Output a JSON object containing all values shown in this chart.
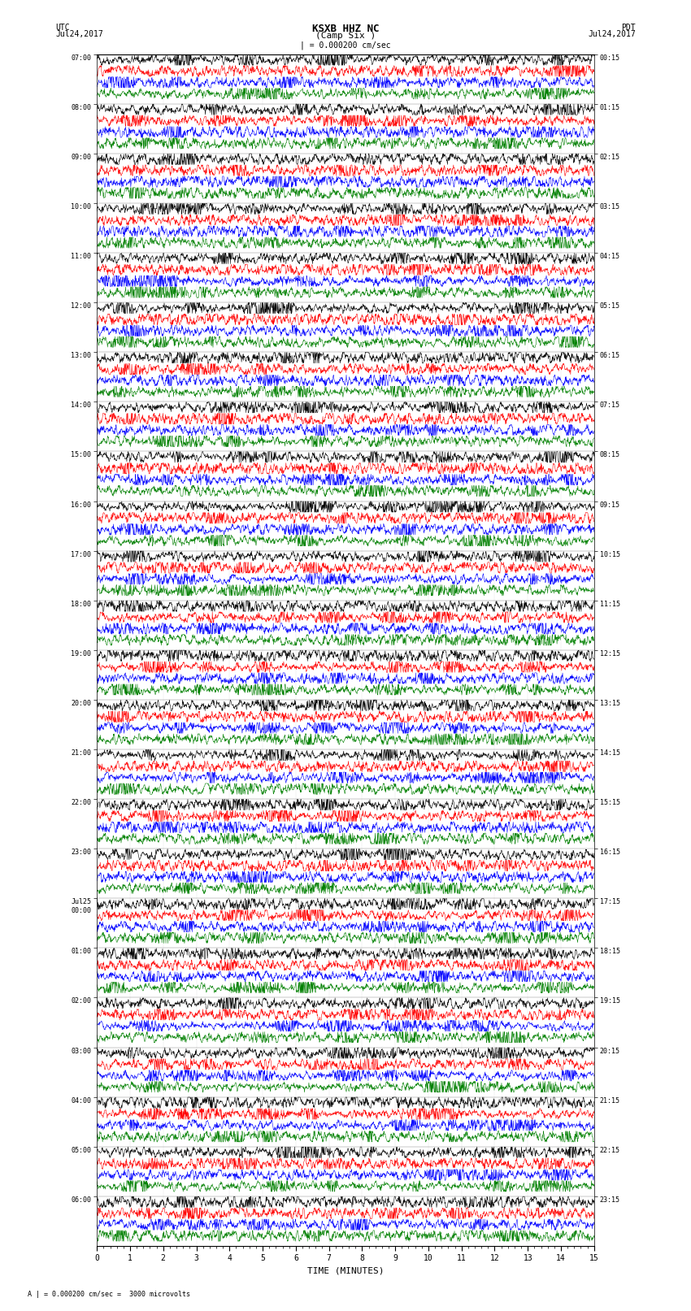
{
  "title_line1": "KSXB HHZ NC",
  "title_line2": "(Camp Six )",
  "scale_text": "| = 0.000200 cm/sec",
  "left_label": "UTC",
  "left_date": "Jul24,2017",
  "right_label": "PDT",
  "right_date": "Jul24,2017",
  "bottom_label": "TIME (MINUTES)",
  "footer_text": "A | = 0.000200 cm/sec =  3000 microvolts",
  "x_ticks": [
    0,
    1,
    2,
    3,
    4,
    5,
    6,
    7,
    8,
    9,
    10,
    11,
    12,
    13,
    14,
    15
  ],
  "left_times": [
    "07:00",
    "08:00",
    "09:00",
    "10:00",
    "11:00",
    "12:00",
    "13:00",
    "14:00",
    "15:00",
    "16:00",
    "17:00",
    "18:00",
    "19:00",
    "20:00",
    "21:00",
    "22:00",
    "23:00",
    "Jul25\n00:00",
    "01:00",
    "02:00",
    "03:00",
    "04:00",
    "05:00",
    "06:00"
  ],
  "right_times": [
    "00:15",
    "01:15",
    "02:15",
    "03:15",
    "04:15",
    "05:15",
    "06:15",
    "07:15",
    "08:15",
    "09:15",
    "10:15",
    "11:15",
    "12:15",
    "13:15",
    "14:15",
    "15:15",
    "16:15",
    "17:15",
    "18:15",
    "19:15",
    "20:15",
    "21:15",
    "22:15",
    "23:15"
  ],
  "trace_colors": [
    "black",
    "red",
    "blue",
    "green"
  ],
  "n_rows": 24,
  "bg_color": "white",
  "noise_seed": 42
}
